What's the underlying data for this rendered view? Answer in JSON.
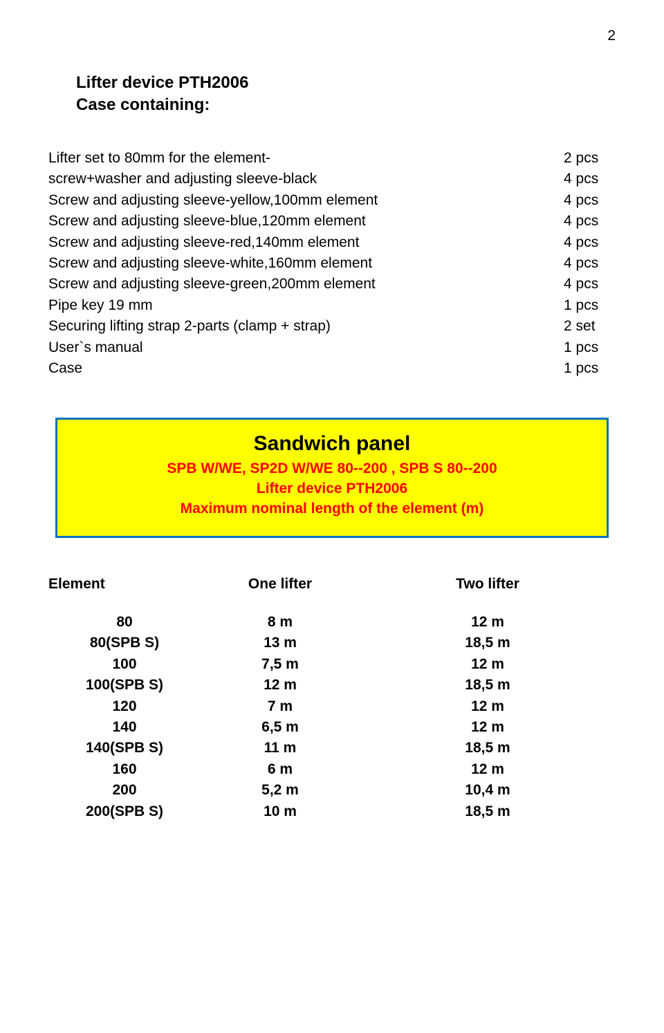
{
  "page_number": "2",
  "title_line1": "Lifter device PTH2006",
  "title_line2": "Case containing:",
  "contents": [
    {
      "label": "Lifter set to 80mm for the element-",
      "qty": "2 pcs"
    },
    {
      "label": "screw+washer and adjusting sleeve-black",
      "qty": "4 pcs"
    },
    {
      "label": "Screw and adjusting sleeve-yellow,100mm element",
      "qty": "4 pcs"
    },
    {
      "label": "Screw and adjusting sleeve-blue,120mm element",
      "qty": "4 pcs"
    },
    {
      "label": "Screw and adjusting sleeve-red,140mm element",
      "qty": "4 pcs"
    },
    {
      "label": "Screw and adjusting sleeve-white,160mm element",
      "qty": "4 pcs"
    },
    {
      "label": "Screw and adjusting sleeve-green,200mm element",
      "qty": "4 pcs"
    },
    {
      "label": "Pipe key 19 mm",
      "qty": "1 pcs"
    },
    {
      "label": "Securing lifting strap 2-parts (clamp + strap)",
      "qty": "2 set"
    },
    {
      "label": "User`s manual",
      "qty": "1 pcs"
    },
    {
      "label": "Case",
      "qty": "1 pcs"
    }
  ],
  "panel": {
    "title": "Sandwich panel",
    "line1": "SPB W/WE, SP2D W/WE  80--200  ,  SPB  S   80--200",
    "line2": "Lifter device  PTH2006",
    "line3": "Maximum nominal length of the element    (m)"
  },
  "table": {
    "head": {
      "c1": "Element",
      "c2": "One lifter",
      "c3": "Two lifter"
    },
    "rows": [
      {
        "c1": "80",
        "c2": "8 m",
        "c3": "12 m"
      },
      {
        "c1": "80(SPB S)",
        "c2": "13 m",
        "c3": "18,5 m"
      },
      {
        "c1": "100",
        "c2": "7,5 m",
        "c3": "12 m"
      },
      {
        "c1": "100(SPB S)",
        "c2": "12 m",
        "c3": "18,5 m"
      },
      {
        "c1": "120",
        "c2": "7 m",
        "c3": "12 m"
      },
      {
        "c1": "140",
        "c2": "6,5 m",
        "c3": "12 m"
      },
      {
        "c1": "140(SPB S)",
        "c2": "11 m",
        "c3": "18,5 m"
      },
      {
        "c1": "160",
        "c2": "6 m",
        "c3": "12 m"
      },
      {
        "c1": "200",
        "c2": "5,2 m",
        "c3": "10,4 m"
      },
      {
        "c1": "200(SPB S)",
        "c2": "10 m",
        "c3": "18,5 m"
      }
    ]
  },
  "colors": {
    "panel_bg": "#ffff00",
    "panel_border": "#0070c0",
    "panel_text": "#ff0000",
    "body_text": "#000000",
    "page_bg": "#ffffff"
  }
}
